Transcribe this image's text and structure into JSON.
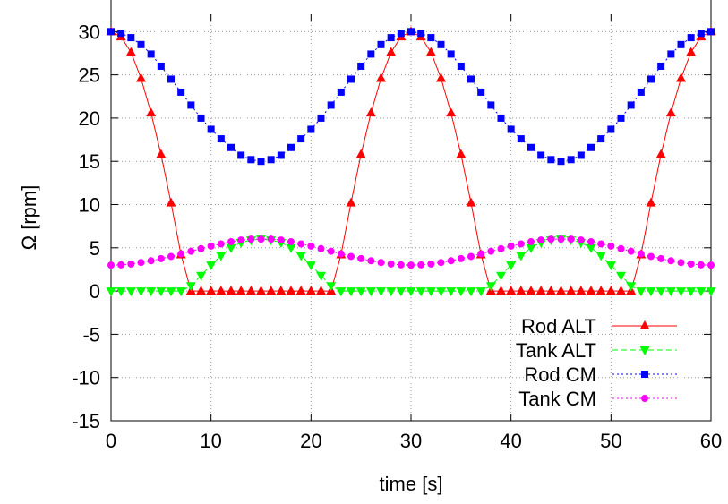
{
  "chart_data": {
    "type": "line",
    "xlabel": "time [s]",
    "ylabel": "Ω [rpm]",
    "xlim": [
      0,
      60
    ],
    "ylim": [
      -15,
      32
    ],
    "xticks": [
      0,
      10,
      20,
      30,
      40,
      50,
      60
    ],
    "xtick_labels": [
      "0",
      "10",
      "20",
      "30",
      "40",
      "50",
      "60"
    ],
    "yticks": [
      -15,
      -10,
      -5,
      0,
      5,
      10,
      15,
      20,
      25,
      30
    ],
    "ytick_labels": [
      "-15",
      "-10",
      "-5",
      "0",
      "5",
      "10",
      "15",
      "20",
      "25",
      "30"
    ],
    "grid": true,
    "legend_position": "bottom-right",
    "series": [
      {
        "name": "Rod ALT",
        "color": "#ff0000",
        "marker": "triangle-up",
        "line_style": "solid",
        "x": [
          0,
          1,
          2,
          3,
          4,
          5,
          6,
          7,
          8,
          9,
          10,
          11,
          12,
          13,
          14,
          15,
          16,
          17,
          18,
          19,
          20,
          21,
          22,
          23,
          24,
          25,
          26,
          27,
          28,
          29,
          30,
          31,
          32,
          33,
          34,
          35,
          36,
          37,
          38,
          39,
          40,
          41,
          42,
          43,
          44,
          45,
          46,
          47,
          48,
          49,
          50,
          51,
          52,
          53,
          54,
          55,
          56,
          57,
          58,
          59,
          60
        ],
        "values": [
          30,
          29.4,
          27.6,
          24.6,
          20.6,
          15.8,
          10.2,
          4.2,
          0,
          0,
          0,
          0,
          0,
          0,
          0,
          0,
          0,
          0,
          0,
          0,
          0,
          0,
          0,
          4.2,
          10.2,
          15.8,
          20.6,
          24.6,
          27.6,
          29.4,
          30,
          29.4,
          27.6,
          24.6,
          20.6,
          15.8,
          10.2,
          4.2,
          0,
          0,
          0,
          0,
          0,
          0,
          0,
          0,
          0,
          0,
          0,
          0,
          0,
          0,
          0,
          4.2,
          10.2,
          15.8,
          20.6,
          24.6,
          27.6,
          29.4,
          30
        ]
      },
      {
        "name": "Tank ALT",
        "color": "#00ff00",
        "marker": "triangle-down",
        "line_style": "dashed",
        "x": [
          0,
          1,
          2,
          3,
          4,
          5,
          6,
          7,
          8,
          9,
          10,
          11,
          12,
          13,
          14,
          15,
          16,
          17,
          18,
          19,
          20,
          21,
          22,
          23,
          24,
          25,
          26,
          27,
          28,
          29,
          30,
          31,
          32,
          33,
          34,
          35,
          36,
          37,
          38,
          39,
          40,
          41,
          42,
          43,
          44,
          45,
          46,
          47,
          48,
          49,
          50,
          51,
          52,
          53,
          54,
          55,
          56,
          57,
          58,
          59,
          60
        ],
        "values": [
          0,
          0,
          0,
          0,
          0,
          0,
          0,
          0,
          0.6,
          1.8,
          3.0,
          4.1,
          5.0,
          5.6,
          5.9,
          6.0,
          5.9,
          5.6,
          5.0,
          4.1,
          3.0,
          1.8,
          0.6,
          0,
          0,
          0,
          0,
          0,
          0,
          0,
          0,
          0,
          0,
          0,
          0,
          0,
          0,
          0,
          0.6,
          1.8,
          3.0,
          4.1,
          5.0,
          5.6,
          5.9,
          6.0,
          5.9,
          5.6,
          5.0,
          4.1,
          3.0,
          1.8,
          0.6,
          0,
          0,
          0,
          0,
          0,
          0,
          0,
          0
        ]
      },
      {
        "name": "Rod CM",
        "color": "#0000ff",
        "marker": "square",
        "line_style": "dotted",
        "x": [
          0,
          1,
          2,
          3,
          4,
          5,
          6,
          7,
          8,
          9,
          10,
          11,
          12,
          13,
          14,
          15,
          16,
          17,
          18,
          19,
          20,
          21,
          22,
          23,
          24,
          25,
          26,
          27,
          28,
          29,
          30,
          31,
          32,
          33,
          34,
          35,
          36,
          37,
          38,
          39,
          40,
          41,
          42,
          43,
          44,
          45,
          46,
          47,
          48,
          49,
          50,
          51,
          52,
          53,
          54,
          55,
          56,
          57,
          58,
          59,
          60
        ],
        "values": [
          30,
          29.8,
          29.3,
          28.5,
          27.4,
          26.0,
          24.5,
          23.0,
          21.5,
          20.0,
          18.7,
          17.6,
          16.6,
          15.7,
          15.2,
          15,
          15.2,
          15.7,
          16.6,
          17.6,
          18.7,
          20.0,
          21.5,
          23.0,
          24.5,
          26.0,
          27.4,
          28.5,
          29.3,
          29.8,
          30,
          29.8,
          29.3,
          28.5,
          27.4,
          26.0,
          24.5,
          23.0,
          21.5,
          20.0,
          18.7,
          17.6,
          16.6,
          15.7,
          15.2,
          15,
          15.2,
          15.7,
          16.6,
          17.6,
          18.7,
          20.0,
          21.5,
          23.0,
          24.5,
          26.0,
          27.4,
          28.5,
          29.3,
          29.8,
          30
        ]
      },
      {
        "name": "Tank CM",
        "color": "#ff00ff",
        "marker": "circle",
        "line_style": "dotted",
        "x": [
          0,
          1,
          2,
          3,
          4,
          5,
          6,
          7,
          8,
          9,
          10,
          11,
          12,
          13,
          14,
          15,
          16,
          17,
          18,
          19,
          20,
          21,
          22,
          23,
          24,
          25,
          26,
          27,
          28,
          29,
          30,
          31,
          32,
          33,
          34,
          35,
          36,
          37,
          38,
          39,
          40,
          41,
          42,
          43,
          44,
          45,
          46,
          47,
          48,
          49,
          50,
          51,
          52,
          53,
          54,
          55,
          56,
          57,
          58,
          59,
          60
        ],
        "values": [
          3.0,
          3.03,
          3.13,
          3.3,
          3.5,
          3.75,
          4.0,
          4.3,
          4.6,
          4.9,
          5.2,
          5.45,
          5.7,
          5.9,
          6.0,
          6.0,
          6.0,
          5.9,
          5.7,
          5.45,
          5.2,
          4.9,
          4.6,
          4.3,
          4.0,
          3.75,
          3.5,
          3.3,
          3.13,
          3.03,
          3.0,
          3.03,
          3.13,
          3.3,
          3.5,
          3.75,
          4.0,
          4.3,
          4.6,
          4.9,
          5.2,
          5.45,
          5.7,
          5.9,
          6.0,
          6.0,
          6.0,
          5.9,
          5.7,
          5.45,
          5.2,
          4.9,
          4.6,
          4.3,
          4.0,
          3.75,
          3.5,
          3.3,
          3.13,
          3.03,
          3.0
        ]
      }
    ]
  }
}
